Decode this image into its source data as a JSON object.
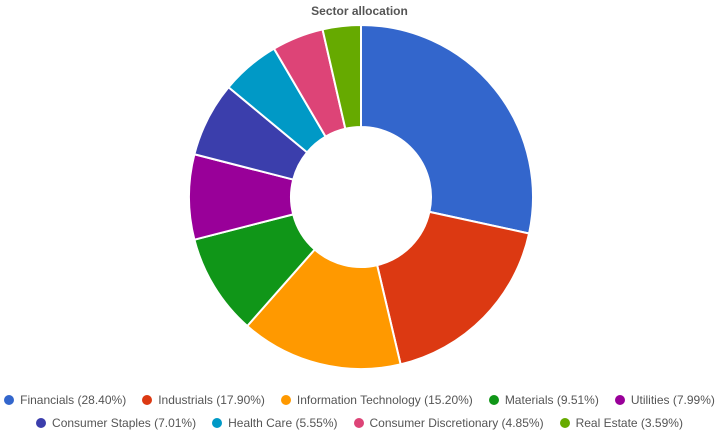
{
  "chart_data": {
    "type": "pie",
    "variant": "donut",
    "title": "Sector allocation",
    "categories": [
      "Financials",
      "Industrials",
      "Information Technology",
      "Materials",
      "Utilities",
      "Consumer Staples",
      "Health Care",
      "Consumer Discretionary",
      "Real Estate"
    ],
    "values": [
      28.4,
      17.9,
      15.2,
      9.51,
      7.99,
      7.01,
      5.55,
      4.85,
      3.59
    ],
    "colors": [
      "#3366cc",
      "#dc3912",
      "#ff9900",
      "#109618",
      "#990099",
      "#3b3eac",
      "#0099c6",
      "#dd4477",
      "#66aa00"
    ],
    "legend_labels": [
      "Financials (28.40%)",
      "Industrials (17.90%)",
      "Information Technology (15.20%)",
      "Materials (9.51%)",
      "Utilities (7.99%)",
      "Consumer Staples (7.01%)",
      "Health Care (5.55%)",
      "Consumer Discretionary (4.85%)",
      "Real Estate (3.59%)"
    ],
    "legend_position": "bottom"
  }
}
